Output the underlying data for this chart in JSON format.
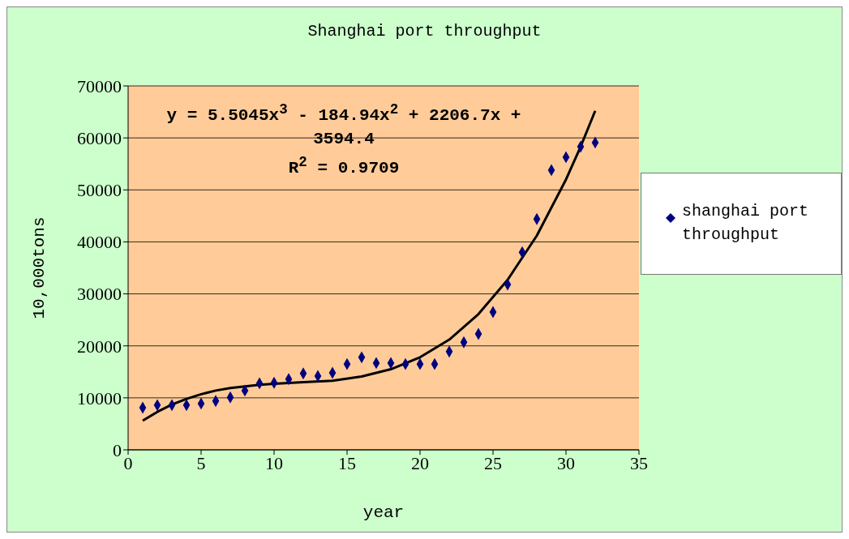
{
  "chart_data": {
    "type": "scatter",
    "title": "Shanghai port throughput",
    "xlabel": "year",
    "ylabel": "10,000tons",
    "x": [
      1,
      2,
      3,
      4,
      5,
      6,
      7,
      8,
      9,
      10,
      11,
      12,
      13,
      14,
      15,
      16,
      17,
      18,
      19,
      20,
      21,
      22,
      23,
      24,
      25,
      26,
      27,
      28,
      29,
      30,
      31,
      32
    ],
    "xlim": [
      0,
      35
    ],
    "xticks": [
      0,
      5,
      10,
      15,
      20,
      25,
      30,
      35
    ],
    "ylim": [
      0,
      70000
    ],
    "yticks": [
      0,
      10000,
      20000,
      30000,
      40000,
      50000,
      60000,
      70000
    ],
    "grid": "y",
    "legend": "right",
    "marker": "diamond",
    "annotations": [
      "y = 5.5045x$^{3}$ - 184.94x$^{2}$ + 2206.7x + 3594.4",
      "R$^{2}$ = 0.9709"
    ],
    "series": [
      {
        "name": "shanghai port throughput",
        "color": "#000080",
        "values": [
          8100,
          8600,
          8600,
          8600,
          8900,
          9400,
          10100,
          11400,
          12800,
          12900,
          13600,
          14700,
          14200,
          14800,
          16500,
          17800,
          16700,
          16700,
          16500,
          16500,
          16500,
          18900,
          20700,
          22300,
          26500,
          31800,
          38000,
          44400,
          53800,
          56300,
          58300,
          59100
        ]
      },
      {
        "type": "line",
        "marker": "none",
        "color": "#000000",
        "x": [
          1,
          2,
          3,
          4,
          5,
          6,
          7,
          8,
          9,
          10,
          12,
          14,
          16,
          18,
          20,
          22,
          24,
          26,
          28,
          30,
          31,
          32
        ],
        "values": [
          5600,
          7300,
          8700,
          9800,
          10700,
          11400,
          11900,
          12200,
          12500,
          12700,
          13000,
          13300,
          14100,
          15500,
          17800,
          21200,
          26100,
          32700,
          41200,
          52000,
          58300,
          65200
        ]
      }
    ]
  }
}
